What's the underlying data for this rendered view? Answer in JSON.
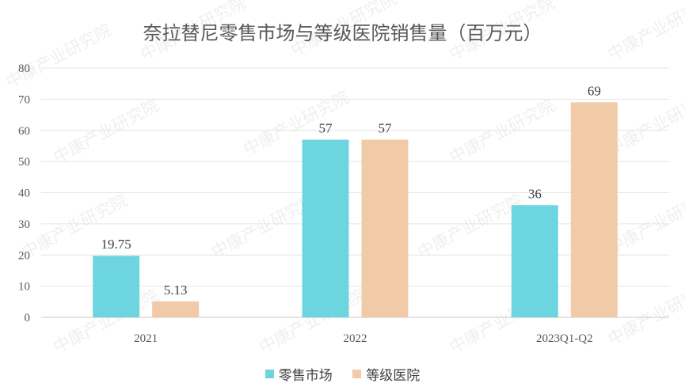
{
  "chart_data": {
    "type": "bar",
    "title": "奈拉替尼零售市场与等级医院销售量（百万元）",
    "categories": [
      "2021",
      "2022",
      "2023Q1-Q2"
    ],
    "series": [
      {
        "name": "零售市场",
        "values": [
          19.75,
          57,
          36
        ],
        "labels": [
          "19.75",
          "57",
          "36"
        ],
        "color": "#6dd5e0"
      },
      {
        "name": "等级医院",
        "values": [
          5.13,
          57,
          69
        ],
        "labels": [
          "5.13",
          "57",
          "69"
        ],
        "color": "#f1cba8"
      }
    ],
    "ylim": [
      0,
      80
    ],
    "yticks": [
      "0",
      "10",
      "20",
      "30",
      "40",
      "50",
      "60",
      "70",
      "80"
    ],
    "grid": true,
    "legend": "bottom",
    "watermark": "中康产业研究院"
  }
}
